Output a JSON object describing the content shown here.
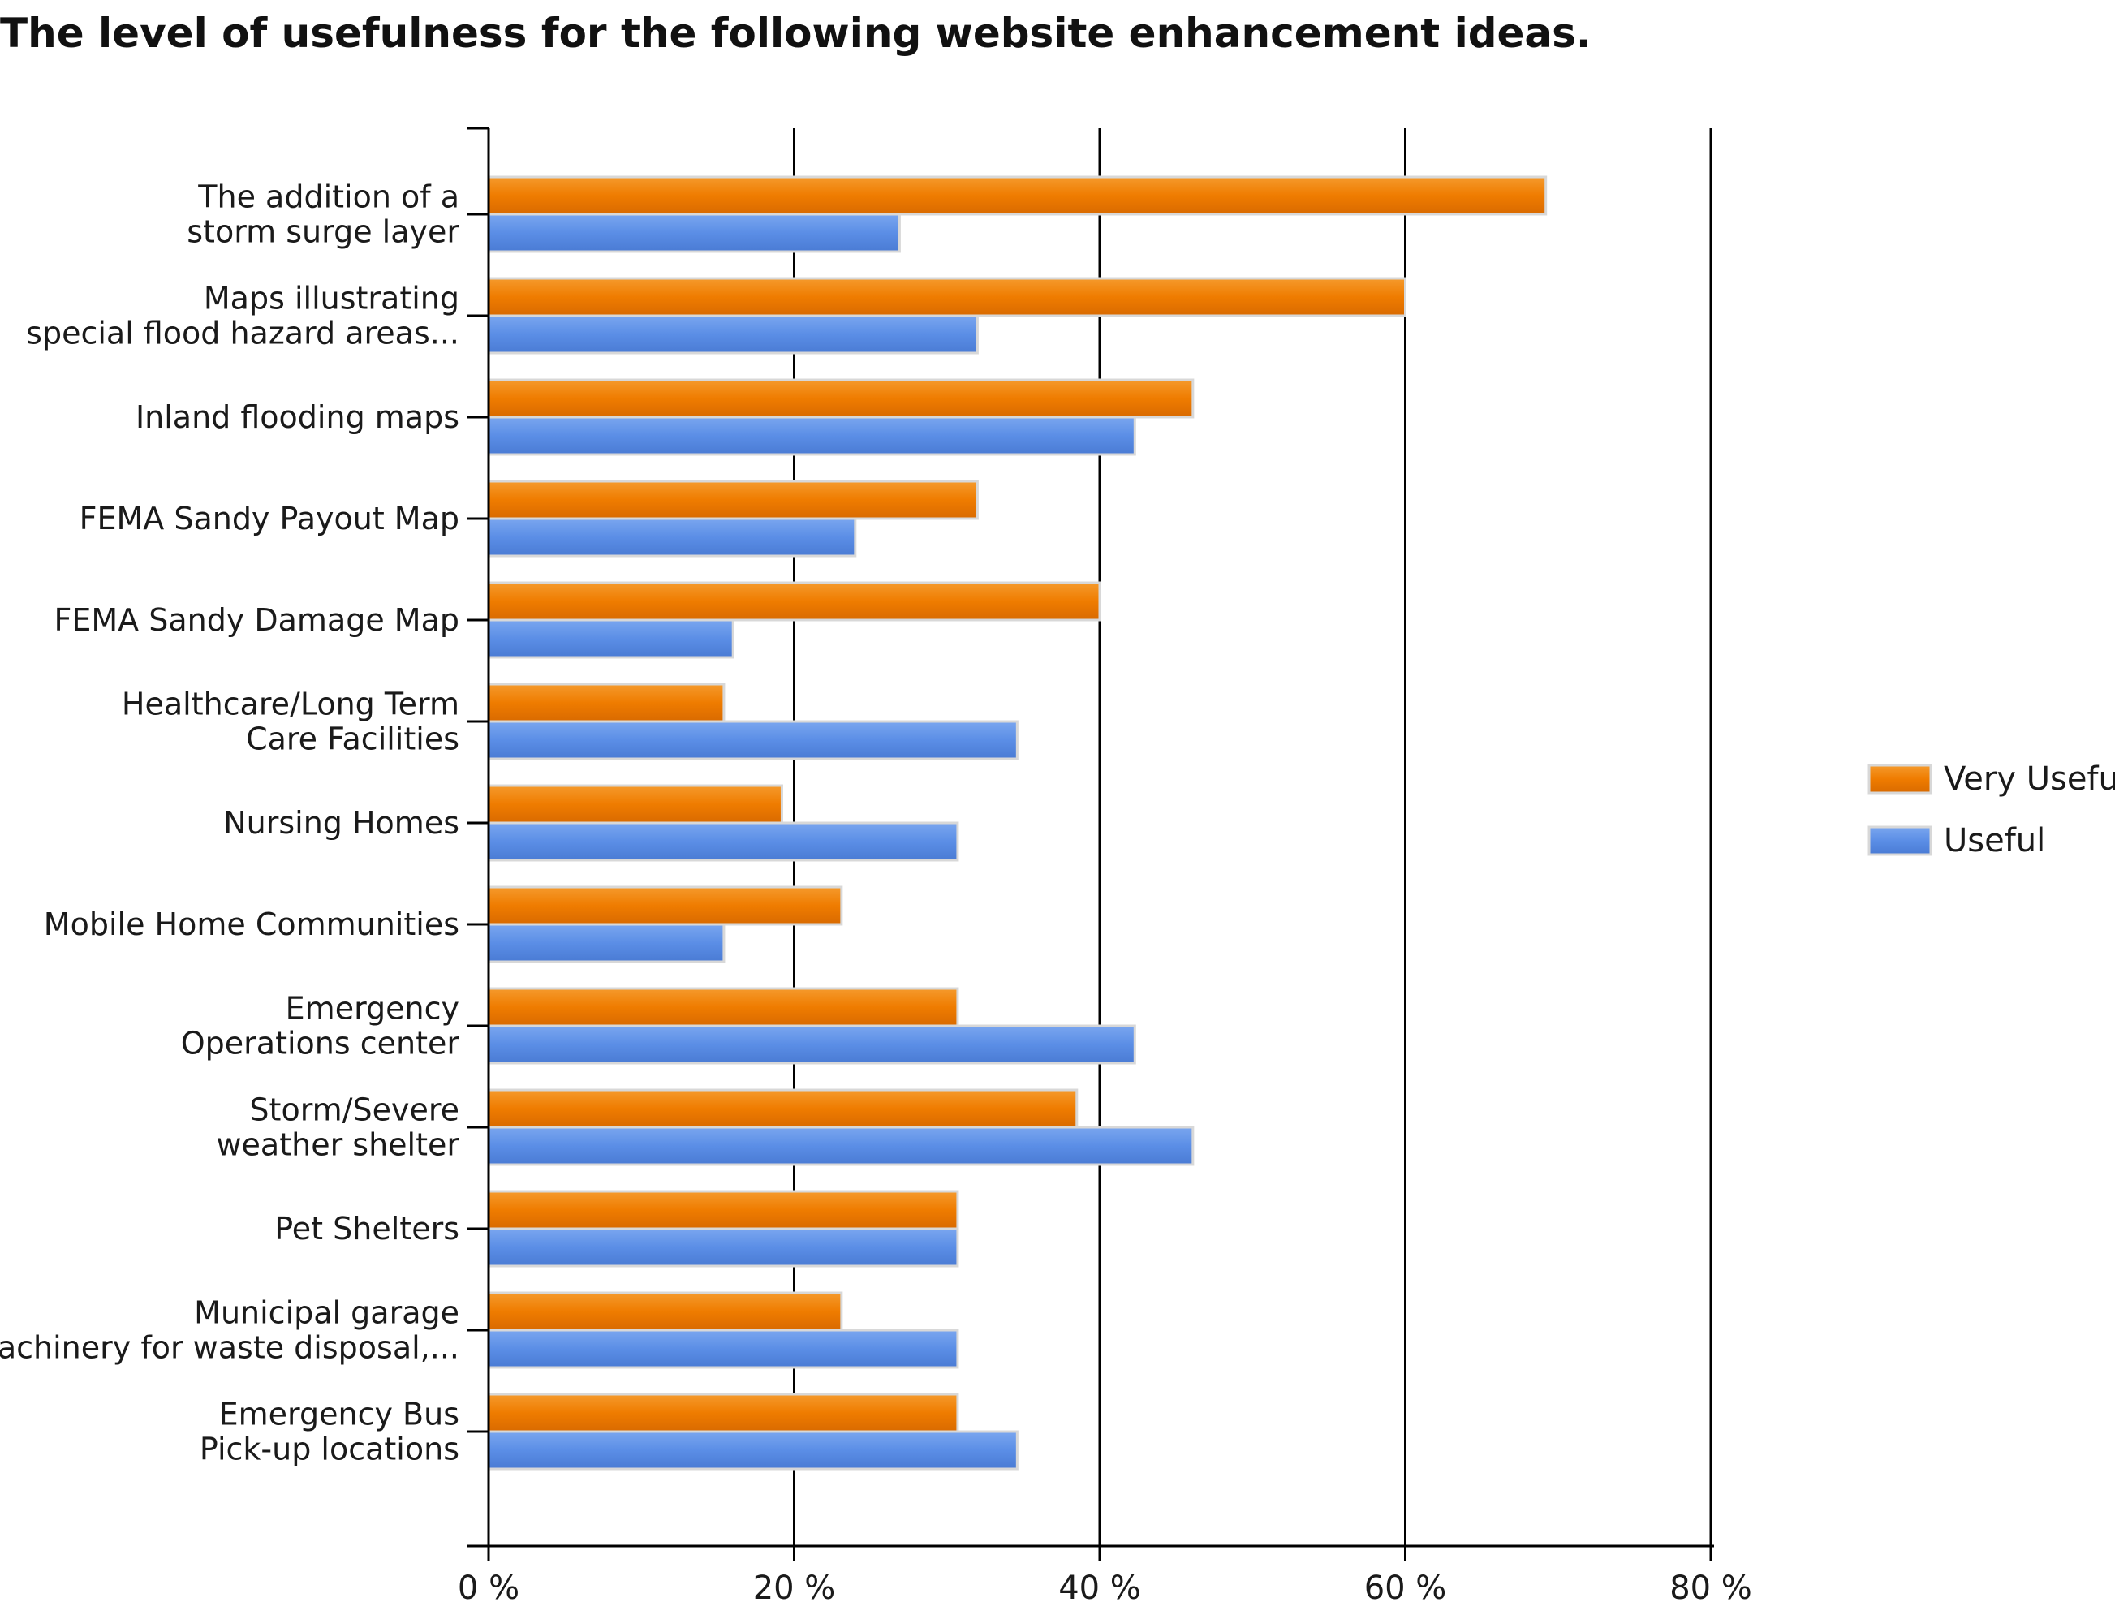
{
  "chart_data": {
    "type": "bar",
    "orientation": "horizontal",
    "title": "The level of usefulness for the following website enhancement ideas.",
    "categories": [
      [
        "The addition of a",
        "storm surge layer"
      ],
      [
        "Maps illustrating",
        "special flood hazard areas..."
      ],
      [
        "Inland flooding maps"
      ],
      [
        "FEMA Sandy Payout Map"
      ],
      [
        "FEMA Sandy Damage Map"
      ],
      [
        "Healthcare/Long Term",
        "Care Facilities"
      ],
      [
        "Nursing Homes"
      ],
      [
        "Mobile Home Communities"
      ],
      [
        "Emergency",
        "Operations center"
      ],
      [
        "Storm/Severe",
        "weather shelter"
      ],
      [
        "Pet Shelters"
      ],
      [
        "Municipal garage",
        "(machinery for waste disposal,..."
      ],
      [
        "Emergency Bus",
        "Pick-up locations"
      ]
    ],
    "series": [
      {
        "name": "Very Useful",
        "color": "#ef7c00",
        "values": [
          69.2,
          60.0,
          46.1,
          32.0,
          40.0,
          15.4,
          19.2,
          23.1,
          30.7,
          38.5,
          30.7,
          23.1,
          30.7
        ]
      },
      {
        "name": "Useful",
        "color": "#5b8ee6",
        "values": [
          26.9,
          32.0,
          42.3,
          24.0,
          16.0,
          34.6,
          30.7,
          15.4,
          42.3,
          46.1,
          30.7,
          30.7,
          34.6
        ]
      }
    ],
    "xlim": [
      0,
      80
    ],
    "xticks": [
      0,
      20,
      40,
      60,
      80
    ],
    "tick_labels": [
      "0 %",
      "20 %",
      "40 %",
      "60 %",
      "80 %"
    ],
    "grid": true,
    "legend_position": "right"
  }
}
